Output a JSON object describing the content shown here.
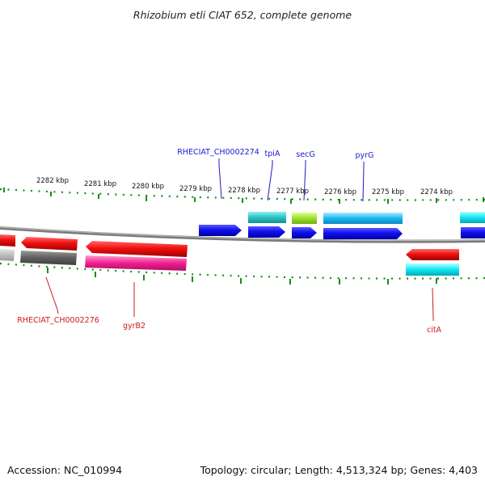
{
  "title": "Rhizobium etli CIAT 652, complete genome",
  "footer": {
    "accession": "Accession: NC_010994",
    "summary": "Topology: circular; Length: 4,513,324 bp; Genes: 4,403"
  },
  "colors": {
    "background": "#ffffff",
    "backbone": "#808080",
    "tick": "#1a8a1a",
    "label_forward": "#1a1acc",
    "label_reverse": "#cc1a1a"
  },
  "scale": {
    "unit": "kbp",
    "ticks": [
      "2282 kbp",
      "2281 kbp",
      "2280 kbp",
      "2279 kbp",
      "2278 kbp",
      "2277 kbp",
      "2276 kbp",
      "2275 kbp",
      "2274 kbp"
    ]
  },
  "gene_labels": {
    "forward": [
      "RHECIAT_CH0002274",
      "tpiA",
      "secG",
      "pyrG"
    ],
    "reverse": [
      "RHECIAT_CH0002276",
      "gyrB2",
      "citA"
    ]
  }
}
